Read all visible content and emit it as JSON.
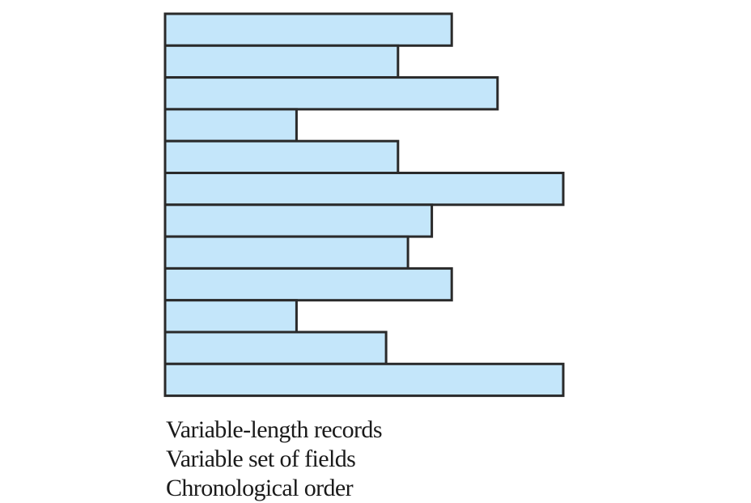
{
  "figure": {
    "record_lengths": [
      0.72,
      0.585,
      0.835,
      0.33,
      0.585,
      1.0,
      0.67,
      0.61,
      0.72,
      0.33,
      0.555,
      1.0
    ],
    "colors": {
      "record_fill": "#c4e6fa",
      "record_outline": "#2a2a2a",
      "caption_text": "#1a1a1a"
    }
  },
  "caption": {
    "line1": "Variable-length records",
    "line2": "Variable set of fields",
    "line3": "Chronological order"
  }
}
